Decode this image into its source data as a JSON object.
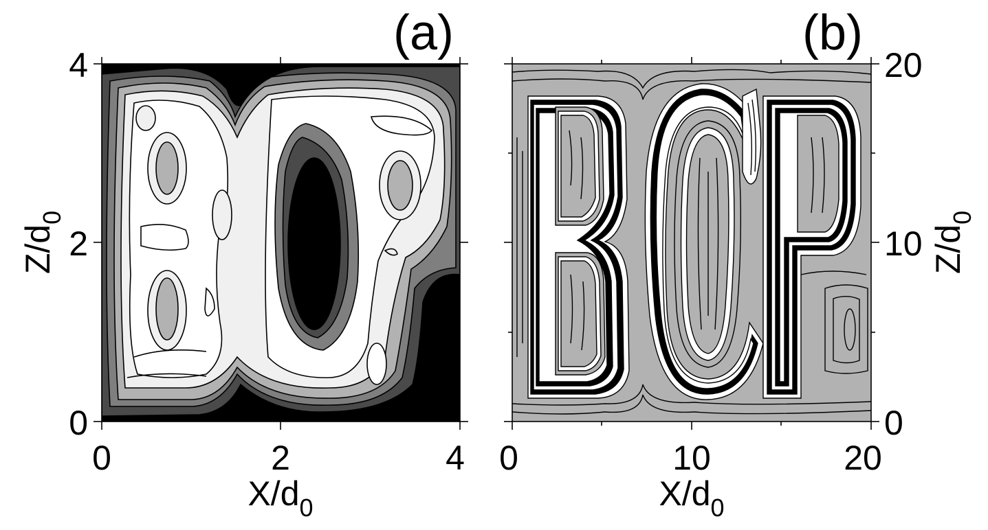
{
  "chart_data": [
    {
      "type": "heatmap",
      "panel_label": "(a)",
      "xlabel": "X/d",
      "xlabel_sub": "0",
      "ylabel": "Z/d",
      "ylabel_sub": "0",
      "xlim": [
        0,
        4
      ],
      "ylim": [
        0,
        4
      ],
      "xticks": [
        "0",
        "2",
        "4"
      ],
      "yticks": [
        "0",
        "2",
        "4"
      ],
      "colormap": "grayscale filled contours, black = low, white = high",
      "colors": [
        "#000000",
        "#4a4a4a",
        "#7f7f7f",
        "#b2b2b2",
        "#f0f0f0",
        "#ffffff"
      ],
      "features": {
        "dark_core": {
          "x": 2.3,
          "z": 2.0,
          "level": 0
        },
        "grey_islands": [
          {
            "x": 0.75,
            "z": 2.8,
            "level": 3
          },
          {
            "x": 0.75,
            "z": 1.3,
            "level": 3
          },
          {
            "x": 3.35,
            "z": 2.6,
            "level": 3
          }
        ]
      }
    },
    {
      "type": "heatmap",
      "panel_label": "(b)",
      "xlabel": "X/d",
      "xlabel_sub": "0",
      "ylabel": "Z/d",
      "ylabel_sub": "0",
      "xlim": [
        0,
        20
      ],
      "ylim": [
        0,
        20
      ],
      "xticks": [
        "0",
        "10",
        "20"
      ],
      "yticks": [
        "0",
        "10",
        "20"
      ],
      "colormap": "grayscale filled contours",
      "colors": [
        "#b2b2b2",
        "#ffffff",
        "#000000"
      ],
      "pattern_letters": [
        "B",
        "C",
        "P"
      ]
    }
  ]
}
